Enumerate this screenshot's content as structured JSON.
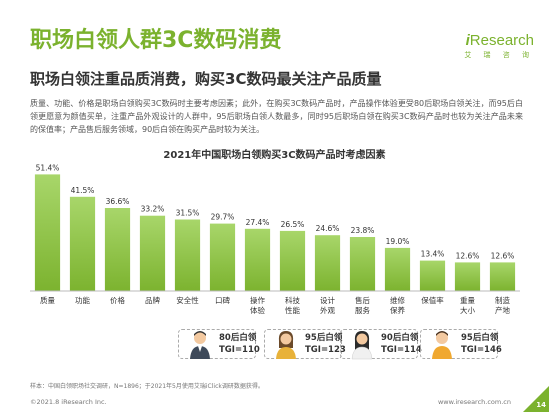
{
  "header": {
    "title": "职场白领人群3C数码消费",
    "logo_word": "Research",
    "logo_prefix": "i",
    "logo_cn": "艾 瑞 咨 询",
    "subtitle": "职场白领注重品质消费，购买3C数码最关注产品质量"
  },
  "body_text": "质量、功能、价格是职场白领购买3C数码时主要考虑因素；此外，在购买3C数码产品时，产品操作体验更受80后职场白领关注，而95后白领更愿意为颜值买单，注重产品外观设计的人群中，95后职场白领人数最多，同时95后职场白领在购买3C数码产品时也较为关注产品未来的保值率；产品售后服务领域，90后白领在购买产品时较为关注。",
  "chart_data": {
    "type": "bar",
    "title": "2021年中国职场白领购买3C数码产品时考虑因素",
    "categories": [
      "质量",
      "功能",
      "价格",
      "品牌",
      "安全性",
      "口碑",
      "操作\n体验",
      "科技\n性能",
      "设计\n外观",
      "售后\n服务",
      "维修\n保养",
      "保值率",
      "重量\n大小",
      "制造\n产地"
    ],
    "values": [
      51.4,
      41.5,
      36.6,
      33.2,
      31.5,
      29.7,
      27.4,
      26.5,
      24.6,
      23.8,
      19.0,
      13.4,
      12.6,
      12.6
    ],
    "unit": "%",
    "ylim": [
      0,
      55
    ],
    "grid": false,
    "colors": {
      "bar_top": "#a8d66a",
      "bar_bottom": "#7cb32f"
    }
  },
  "callouts": [
    {
      "line1": "80后白领",
      "line2": "TGI=110"
    },
    {
      "line1": "95后白领",
      "line2": "TGI=123"
    },
    {
      "line1": "90后白领",
      "line2": "TGI=114"
    },
    {
      "line1": "95后白领",
      "line2": "TGI=146"
    }
  ],
  "footer": {
    "note": "样本：中国白领职场社交调研，N=1896；于2021年5月使用艾瑞iClick调研数据获得。",
    "copyright": "©2021.8 iResearch Inc.",
    "website": "www.iresearch.com.cn",
    "page_number": "14"
  },
  "colors": {
    "accent": "#7bb22e",
    "text": "#333333"
  }
}
